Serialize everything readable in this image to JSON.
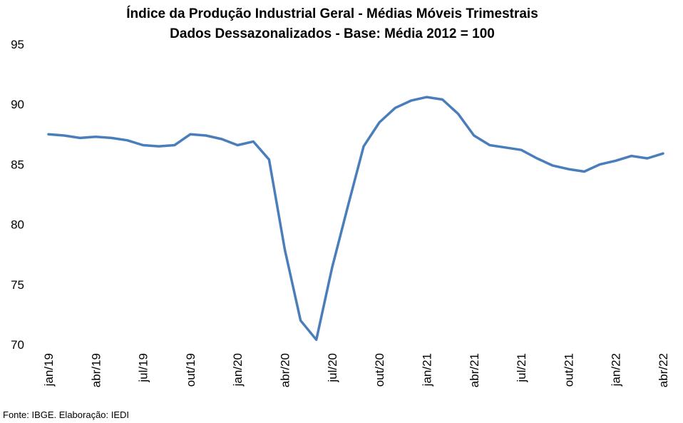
{
  "chart_data": {
    "type": "line",
    "title": "Índice da Produção Industrial Geral - Médias Móveis Trimestrais",
    "subtitle": "Dados Dessazonalizados - Base: Média 2012 = 100",
    "source": "Fonte: IBGE. Elaboração: IEDI",
    "categories": [
      "jan/19",
      null,
      null,
      "abr/19",
      null,
      null,
      "jul/19",
      null,
      null,
      "out/19",
      null,
      null,
      "jan/20",
      null,
      null,
      "abr/20",
      null,
      null,
      "jul/20",
      null,
      null,
      "out/20",
      null,
      null,
      "jan/21",
      null,
      null,
      "abr/21",
      null,
      null,
      "jul/21",
      null,
      null,
      "out/21",
      null,
      null,
      "jan/22",
      null,
      null,
      "abr/22"
    ],
    "series": [
      {
        "name": "Índice",
        "color": "#4a7ebb",
        "values": [
          87.5,
          87.4,
          87.2,
          87.3,
          87.2,
          87.0,
          86.6,
          86.5,
          86.6,
          87.5,
          87.4,
          87.1,
          86.6,
          86.9,
          85.4,
          77.9,
          72.0,
          70.4,
          76.4,
          81.5,
          86.5,
          88.5,
          89.7,
          90.3,
          90.6,
          90.4,
          89.2,
          87.4,
          86.6,
          86.4,
          86.2,
          85.5,
          84.9,
          84.6,
          84.4,
          85.0,
          85.3,
          85.7,
          85.5,
          85.9
        ]
      }
    ],
    "ylim": [
      70,
      95
    ],
    "yticks": [
      70,
      75,
      80,
      85,
      90,
      95
    ]
  }
}
